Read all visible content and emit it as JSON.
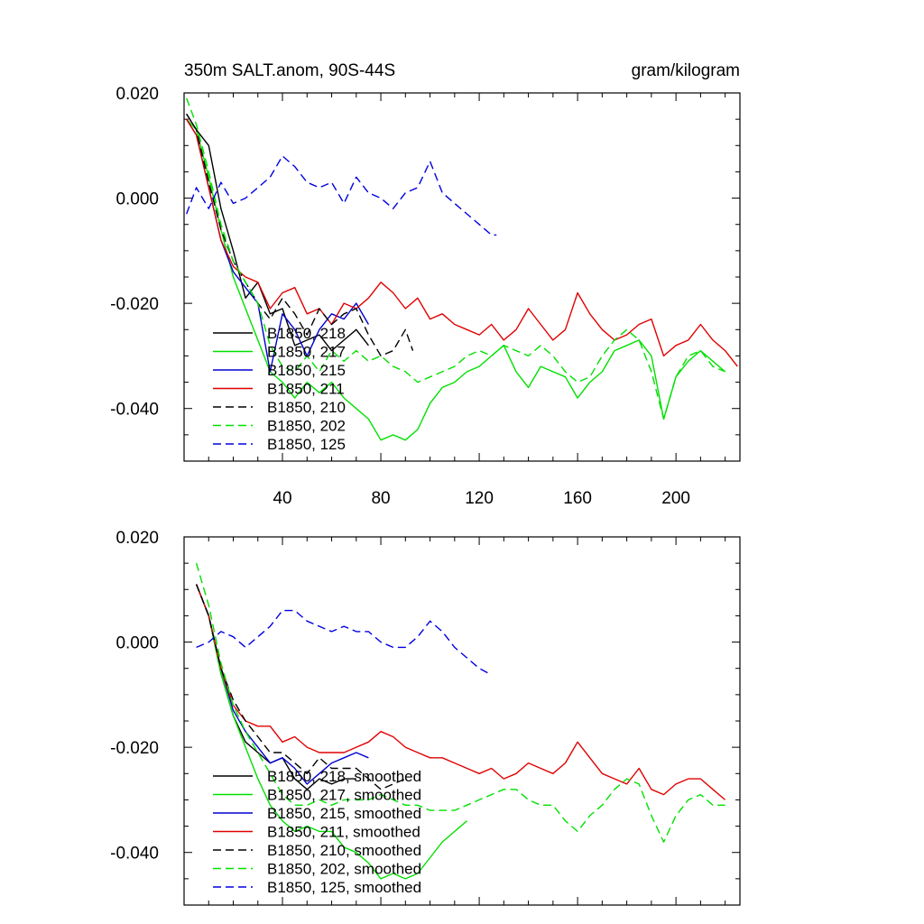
{
  "chart_data": [
    {
      "type": "line",
      "title": "350m SALT.anom, 90S-44S",
      "units": "gram/kilogram",
      "xlim": [
        0,
        226
      ],
      "ylim": [
        -0.05,
        0.02
      ],
      "x_ticks": [
        40,
        80,
        120,
        160,
        200
      ],
      "y_ticks": [
        0.02,
        0.0,
        -0.02,
        -0.04
      ],
      "y_tick_labels": [
        "0.020",
        "0.000",
        "-0.020",
        "-0.040"
      ],
      "legend_position": "lower-left",
      "series": [
        {
          "name": "B1850, 218",
          "color": "#000000",
          "dash": "solid",
          "x": [
            1,
            5,
            10,
            15,
            20,
            25,
            30,
            35,
            40,
            45,
            50,
            55,
            60,
            65,
            70,
            75
          ],
          "y": [
            0.016,
            0.013,
            0.01,
            -0.002,
            -0.01,
            -0.019,
            -0.016,
            -0.022,
            -0.021,
            -0.028,
            -0.027,
            -0.026,
            -0.029,
            -0.027,
            -0.025,
            -0.028
          ]
        },
        {
          "name": "B1850, 217",
          "color": "#00e000",
          "dash": "solid",
          "x": [
            1,
            5,
            10,
            15,
            20,
            25,
            30,
            35,
            40,
            45,
            50,
            55,
            60,
            65,
            70,
            75,
            80,
            85,
            90,
            95,
            100,
            105,
            110,
            115,
            120,
            125,
            130,
            135,
            140,
            145,
            150,
            155,
            160,
            165,
            170,
            175,
            180,
            185,
            190,
            195,
            200,
            205,
            210,
            215,
            220
          ],
          "y": [
            0.015,
            0.013,
            0.004,
            -0.006,
            -0.015,
            -0.021,
            -0.027,
            -0.033,
            -0.035,
            -0.038,
            -0.035,
            -0.037,
            -0.035,
            -0.038,
            -0.04,
            -0.042,
            -0.046,
            -0.045,
            -0.046,
            -0.044,
            -0.039,
            -0.036,
            -0.035,
            -0.033,
            -0.032,
            -0.03,
            -0.028,
            -0.033,
            -0.036,
            -0.032,
            -0.033,
            -0.034,
            -0.038,
            -0.035,
            -0.033,
            -0.029,
            -0.028,
            -0.027,
            -0.03,
            -0.042,
            -0.034,
            -0.031,
            -0.029,
            -0.031,
            -0.033
          ]
        },
        {
          "name": "B1850, 215",
          "color": "#0000d0",
          "dash": "solid",
          "x": [
            1,
            5,
            10,
            15,
            20,
            25,
            30,
            35,
            40,
            45,
            50,
            55,
            60,
            65,
            70,
            75
          ],
          "y": [
            0.015,
            0.012,
            0.002,
            -0.008,
            -0.014,
            -0.017,
            -0.02,
            -0.033,
            -0.022,
            -0.025,
            -0.03,
            -0.025,
            -0.022,
            -0.023,
            -0.02,
            -0.024
          ]
        },
        {
          "name": "B1850, 211",
          "color": "#e00000",
          "dash": "solid",
          "x": [
            1,
            5,
            10,
            15,
            20,
            25,
            30,
            35,
            40,
            45,
            50,
            55,
            60,
            65,
            70,
            75,
            80,
            85,
            90,
            95,
            100,
            105,
            110,
            115,
            120,
            125,
            130,
            135,
            140,
            145,
            150,
            155,
            160,
            165,
            170,
            175,
            180,
            185,
            190,
            195,
            200,
            205,
            210,
            215,
            220,
            225
          ],
          "y": [
            0.015,
            0.012,
            0.002,
            -0.008,
            -0.013,
            -0.015,
            -0.016,
            -0.021,
            -0.018,
            -0.017,
            -0.022,
            -0.021,
            -0.024,
            -0.02,
            -0.021,
            -0.019,
            -0.016,
            -0.018,
            -0.021,
            -0.019,
            -0.023,
            -0.022,
            -0.024,
            -0.025,
            -0.026,
            -0.024,
            -0.027,
            -0.025,
            -0.021,
            -0.024,
            -0.027,
            -0.025,
            -0.018,
            -0.022,
            -0.025,
            -0.027,
            -0.026,
            -0.024,
            -0.023,
            -0.03,
            -0.028,
            -0.027,
            -0.024,
            -0.027,
            -0.029,
            -0.032
          ]
        },
        {
          "name": "B1850, 210",
          "color": "#000000",
          "dash": "dashed",
          "x": [
            1,
            5,
            10,
            15,
            20,
            25,
            30,
            35,
            40,
            45,
            50,
            55,
            60,
            65,
            70,
            75,
            80,
            85,
            90,
            93
          ],
          "y": [
            0.016,
            0.013,
            0.003,
            -0.006,
            -0.012,
            -0.016,
            -0.02,
            -0.023,
            -0.019,
            -0.022,
            -0.026,
            -0.021,
            -0.024,
            -0.022,
            -0.021,
            -0.026,
            -0.03,
            -0.029,
            -0.025,
            -0.029
          ]
        },
        {
          "name": "B1850, 202",
          "color": "#00e000",
          "dash": "dashed",
          "x": [
            1,
            5,
            10,
            15,
            20,
            25,
            30,
            35,
            40,
            45,
            50,
            55,
            60,
            65,
            70,
            75,
            80,
            85,
            90,
            95,
            100,
            105,
            110,
            115,
            120,
            125,
            130,
            135,
            140,
            145,
            150,
            155,
            160,
            165,
            170,
            175,
            180,
            185,
            190,
            195,
            200,
            205,
            210,
            215,
            220
          ],
          "y": [
            0.019,
            0.014,
            0.005,
            -0.005,
            -0.012,
            -0.016,
            -0.02,
            -0.028,
            -0.032,
            -0.033,
            -0.03,
            -0.033,
            -0.029,
            -0.031,
            -0.029,
            -0.031,
            -0.03,
            -0.032,
            -0.033,
            -0.035,
            -0.034,
            -0.033,
            -0.032,
            -0.03,
            -0.029,
            -0.03,
            -0.028,
            -0.029,
            -0.03,
            -0.028,
            -0.03,
            -0.033,
            -0.035,
            -0.034,
            -0.03,
            -0.027,
            -0.025,
            -0.027,
            -0.033,
            -0.042,
            -0.034,
            -0.03,
            -0.029,
            -0.032,
            -0.033
          ]
        },
        {
          "name": "B1850, 125",
          "color": "#0000e0",
          "dash": "dashed",
          "x": [
            1,
            5,
            10,
            15,
            20,
            25,
            30,
            35,
            40,
            45,
            50,
            55,
            60,
            65,
            70,
            75,
            80,
            85,
            90,
            95,
            100,
            105,
            110,
            115,
            120,
            125,
            127
          ],
          "y": [
            -0.003,
            0.002,
            -0.002,
            0.003,
            -0.001,
            0.0,
            0.002,
            0.004,
            0.008,
            0.006,
            0.003,
            0.002,
            0.003,
            -0.001,
            0.004,
            0.001,
            0.0,
            -0.002,
            0.001,
            0.002,
            0.007,
            0.001,
            -0.001,
            -0.003,
            -0.005,
            -0.007,
            -0.007
          ]
        }
      ]
    },
    {
      "type": "line",
      "xlim": [
        0,
        226
      ],
      "ylim": [
        -0.05,
        0.02
      ],
      "x_ticks": [
        40,
        80,
        120,
        160,
        200
      ],
      "y_ticks": [
        0.02,
        0.0,
        -0.02,
        -0.04
      ],
      "y_tick_labels": [
        "0.020",
        "0.000",
        "-0.020",
        "-0.040"
      ],
      "legend_position": "lower-left",
      "series": [
        {
          "name": "B1850, 218, smoothed",
          "color": "#000000",
          "dash": "solid",
          "x": [
            5,
            10,
            15,
            20,
            25,
            30,
            35,
            40,
            45,
            50,
            55,
            60,
            65,
            70
          ],
          "y": [
            0.011,
            0.005,
            -0.006,
            -0.014,
            -0.019,
            -0.021,
            -0.023,
            -0.022,
            -0.026,
            -0.028,
            -0.026,
            -0.027,
            -0.026,
            -0.026
          ]
        },
        {
          "name": "B1850, 217, smoothed",
          "color": "#00e000",
          "dash": "solid",
          "x": [
            5,
            10,
            15,
            20,
            25,
            30,
            35,
            40,
            45,
            50,
            55,
            60,
            65,
            70,
            75,
            80,
            85,
            90,
            95,
            100,
            105,
            110,
            115
          ],
          "y": [
            0.011,
            0.005,
            -0.006,
            -0.014,
            -0.02,
            -0.026,
            -0.031,
            -0.034,
            -0.036,
            -0.035,
            -0.036,
            -0.036,
            -0.039,
            -0.04,
            -0.042,
            -0.045,
            -0.044,
            -0.045,
            -0.044,
            -0.041,
            -0.038,
            -0.036,
            -0.034
          ]
        },
        {
          "name": "B1850, 215, smoothed",
          "color": "#0000d0",
          "dash": "solid",
          "x": [
            5,
            10,
            15,
            20,
            25,
            30,
            35,
            40,
            45,
            50,
            55,
            60,
            65,
            70,
            75
          ],
          "y": [
            0.011,
            0.005,
            -0.005,
            -0.013,
            -0.017,
            -0.02,
            -0.023,
            -0.022,
            -0.024,
            -0.027,
            -0.025,
            -0.023,
            -0.022,
            -0.021,
            -0.022
          ]
        },
        {
          "name": "B1850, 211, smoothed",
          "color": "#e00000",
          "dash": "solid",
          "x": [
            5,
            10,
            15,
            20,
            25,
            30,
            35,
            40,
            45,
            50,
            55,
            60,
            65,
            70,
            75,
            80,
            85,
            90,
            95,
            100,
            105,
            110,
            115,
            120,
            125,
            130,
            135,
            140,
            145,
            150,
            155,
            160,
            165,
            170,
            175,
            180,
            185,
            190,
            195,
            200,
            205,
            210,
            215,
            220
          ],
          "y": [
            0.011,
            0.005,
            -0.005,
            -0.012,
            -0.015,
            -0.016,
            -0.016,
            -0.019,
            -0.018,
            -0.02,
            -0.021,
            -0.021,
            -0.021,
            -0.02,
            -0.019,
            -0.017,
            -0.018,
            -0.02,
            -0.021,
            -0.022,
            -0.022,
            -0.023,
            -0.024,
            -0.025,
            -0.024,
            -0.026,
            -0.025,
            -0.023,
            -0.024,
            -0.025,
            -0.023,
            -0.019,
            -0.022,
            -0.025,
            -0.026,
            -0.027,
            -0.024,
            -0.028,
            -0.029,
            -0.027,
            -0.026,
            -0.026,
            -0.028,
            -0.03
          ]
        },
        {
          "name": "B1850, 210, smoothed",
          "color": "#000000",
          "dash": "dashed",
          "x": [
            5,
            10,
            15,
            20,
            25,
            30,
            35,
            40,
            45,
            50,
            55,
            60,
            65,
            70,
            75,
            80,
            85,
            90
          ],
          "y": [
            0.011,
            0.005,
            -0.005,
            -0.011,
            -0.015,
            -0.018,
            -0.021,
            -0.021,
            -0.023,
            -0.025,
            -0.022,
            -0.024,
            -0.024,
            -0.024,
            -0.026,
            -0.028,
            -0.027,
            -0.026
          ]
        },
        {
          "name": "B1850, 202, smoothed",
          "color": "#00e000",
          "dash": "dashed",
          "x": [
            5,
            10,
            15,
            20,
            25,
            30,
            35,
            40,
            45,
            50,
            55,
            60,
            65,
            70,
            75,
            80,
            85,
            90,
            95,
            100,
            105,
            110,
            115,
            120,
            125,
            130,
            135,
            140,
            145,
            150,
            155,
            160,
            165,
            170,
            175,
            180,
            185,
            190,
            195,
            200,
            205,
            210,
            215,
            220
          ],
          "y": [
            0.015,
            0.007,
            -0.004,
            -0.012,
            -0.017,
            -0.021,
            -0.025,
            -0.029,
            -0.031,
            -0.031,
            -0.03,
            -0.031,
            -0.03,
            -0.03,
            -0.03,
            -0.029,
            -0.03,
            -0.031,
            -0.031,
            -0.032,
            -0.032,
            -0.032,
            -0.031,
            -0.03,
            -0.029,
            -0.028,
            -0.028,
            -0.03,
            -0.031,
            -0.031,
            -0.034,
            -0.036,
            -0.033,
            -0.031,
            -0.028,
            -0.026,
            -0.027,
            -0.033,
            -0.038,
            -0.033,
            -0.03,
            -0.029,
            -0.031,
            -0.031
          ]
        },
        {
          "name": "B1850, 125, smoothed",
          "color": "#0000e0",
          "dash": "dashed",
          "x": [
            5,
            10,
            15,
            20,
            25,
            30,
            35,
            40,
            45,
            50,
            55,
            60,
            65,
            70,
            75,
            80,
            85,
            90,
            95,
            100,
            105,
            110,
            115,
            120,
            124
          ],
          "y": [
            -0.001,
            0.0,
            0.002,
            0.001,
            -0.001,
            0.001,
            0.003,
            0.006,
            0.006,
            0.004,
            0.003,
            0.002,
            0.003,
            0.002,
            0.002,
            0.0,
            -0.001,
            -0.001,
            0.001,
            0.004,
            0.002,
            -0.001,
            -0.003,
            -0.005,
            -0.006
          ]
        }
      ]
    }
  ]
}
